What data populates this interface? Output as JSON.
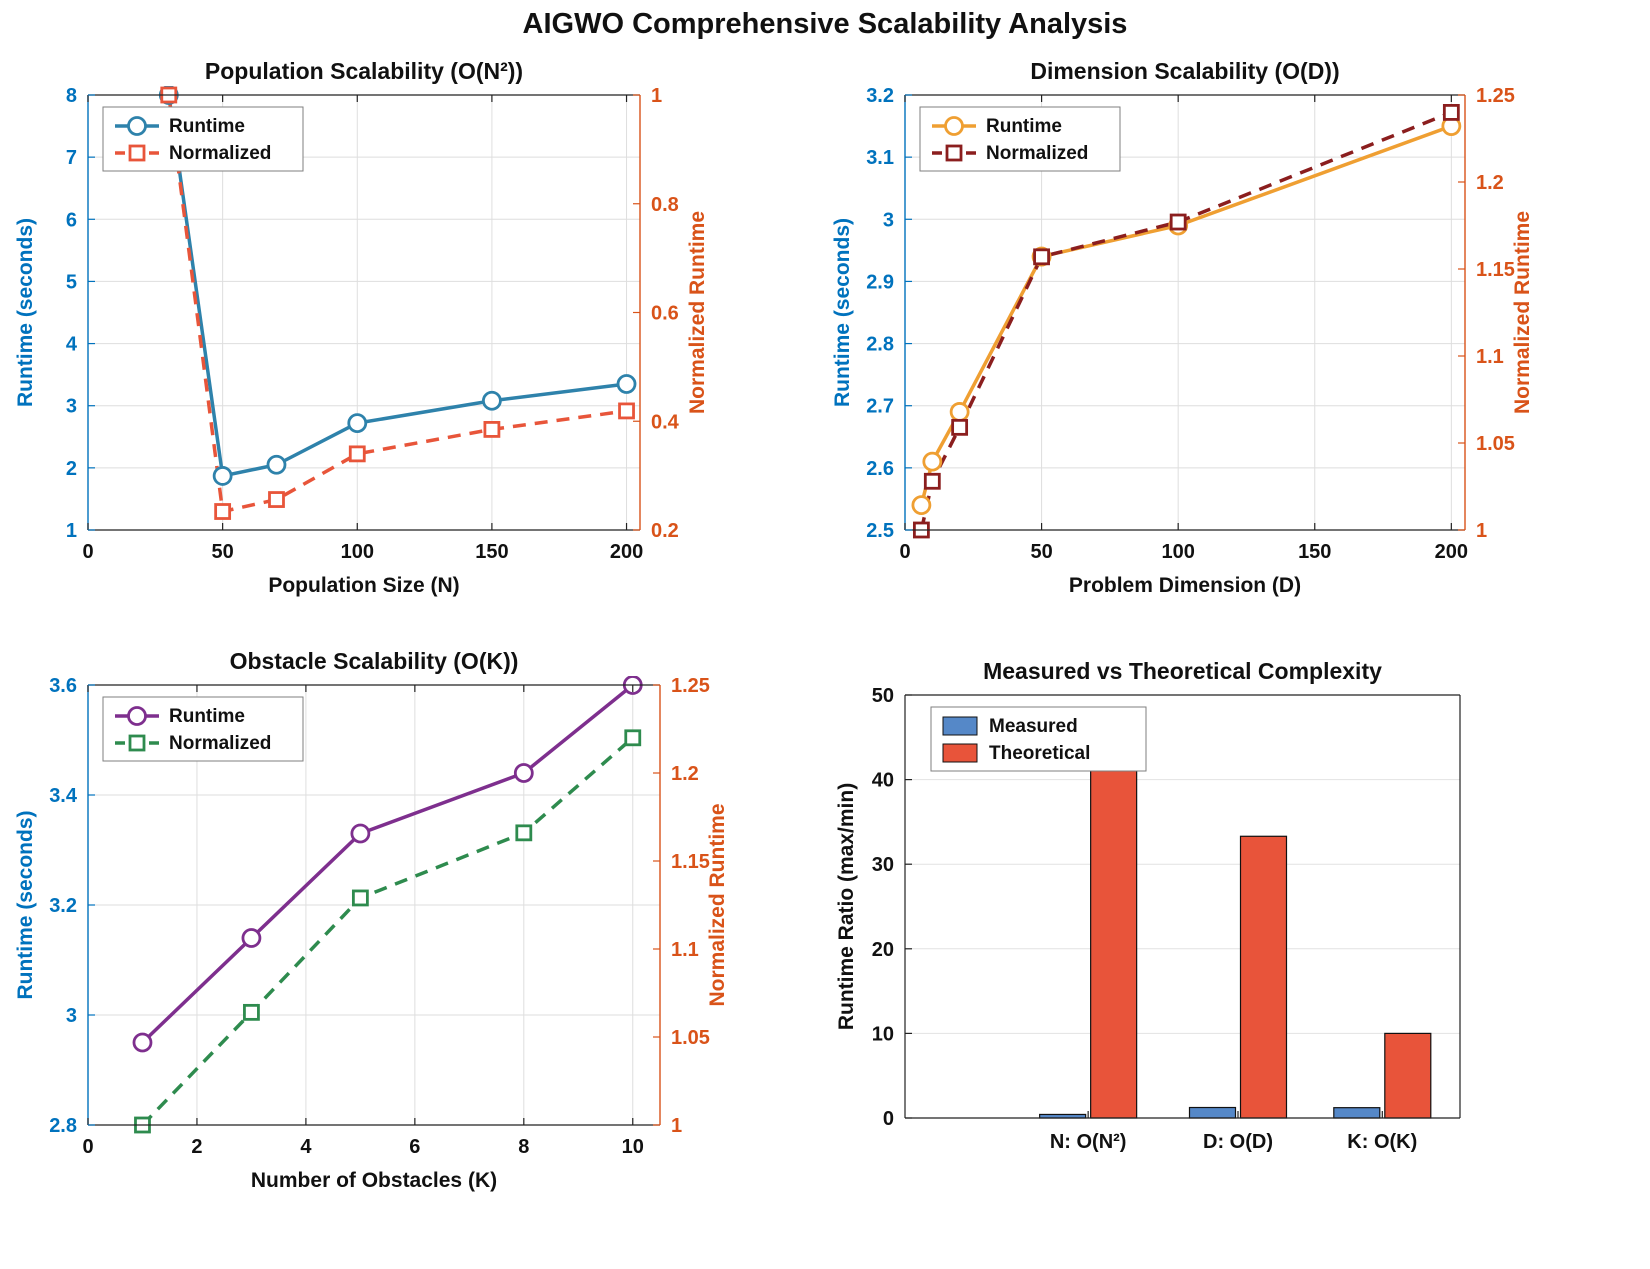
{
  "title": "AIGWO Comprehensive Scalability Analysis",
  "chart_data": [
    {
      "type": "line",
      "title": "Population Scalability (O(N²))",
      "xlabel": "Population Size (N)",
      "ylabel_left": "Runtime (seconds)",
      "ylabel_right": "Normalized Runtime",
      "xlim": [
        0,
        205
      ],
      "xticks": [
        0,
        50,
        100,
        150,
        200
      ],
      "ylim_left": [
        1,
        8
      ],
      "yticks_left": [
        1,
        2,
        3,
        4,
        5,
        6,
        7,
        8
      ],
      "ylim_right": [
        0.2,
        1
      ],
      "yticks_right": [
        0.2,
        0.4,
        0.6,
        0.8,
        1
      ],
      "axis_color_left": "#0072BD",
      "axis_color_right": "#D95319",
      "legend": [
        "Runtime",
        "Normalized"
      ],
      "series": [
        {
          "name": "Runtime",
          "axis": "left",
          "color": "#2E82AB",
          "dash": false,
          "marker": "circle",
          "x": [
            30,
            50,
            70,
            100,
            150,
            200
          ],
          "y": [
            8.0,
            1.87,
            2.05,
            2.72,
            3.08,
            3.35
          ]
        },
        {
          "name": "Normalized",
          "axis": "right",
          "color": "#E8553A",
          "dash": true,
          "marker": "square",
          "x": [
            30,
            50,
            70,
            100,
            150,
            200
          ],
          "y": [
            1.0,
            0.234,
            0.256,
            0.34,
            0.385,
            0.419
          ]
        }
      ]
    },
    {
      "type": "line",
      "title": "Dimension Scalability (O(D))",
      "xlabel": "Problem Dimension (D)",
      "ylabel_left": "Runtime (seconds)",
      "ylabel_right": "Normalized Runtime",
      "xlim": [
        0,
        205
      ],
      "xticks": [
        0,
        50,
        100,
        150,
        200
      ],
      "ylim_left": [
        2.5,
        3.2
      ],
      "yticks_left": [
        2.5,
        2.6,
        2.7,
        2.8,
        2.9,
        3,
        3.1,
        3.2
      ],
      "ylim_right": [
        1,
        1.25
      ],
      "yticks_right": [
        1,
        1.05,
        1.1,
        1.15,
        1.2,
        1.25
      ],
      "axis_color_left": "#0072BD",
      "axis_color_right": "#D95319",
      "legend": [
        "Runtime",
        "Normalized"
      ],
      "series": [
        {
          "name": "Runtime",
          "axis": "left",
          "color": "#EF9F32",
          "dash": false,
          "marker": "circle",
          "x": [
            6,
            10,
            20,
            50,
            100,
            200
          ],
          "y": [
            2.54,
            2.61,
            2.69,
            2.94,
            2.99,
            3.15
          ]
        },
        {
          "name": "Normalized",
          "axis": "right",
          "color": "#8B1E1E",
          "dash": true,
          "marker": "square",
          "x": [
            6,
            10,
            20,
            50,
            100,
            200
          ],
          "y": [
            1.0,
            1.028,
            1.059,
            1.157,
            1.177,
            1.24
          ]
        }
      ]
    },
    {
      "type": "line",
      "title": "Obstacle Scalability (O(K))",
      "xlabel": "Number of Obstacles (K)",
      "ylabel_left": "Runtime (seconds)",
      "ylabel_right": "Normalized Runtime",
      "xlim": [
        0,
        10.5
      ],
      "xticks": [
        0,
        2,
        4,
        6,
        8,
        10
      ],
      "ylim_left": [
        2.8,
        3.6
      ],
      "yticks_left": [
        2.8,
        3,
        3.2,
        3.4,
        3.6
      ],
      "ylim_right": [
        1,
        1.25
      ],
      "yticks_right": [
        1,
        1.05,
        1.1,
        1.15,
        1.2,
        1.25
      ],
      "axis_color_left": "#0072BD",
      "axis_color_right": "#D95319",
      "legend": [
        "Runtime",
        "Normalized"
      ],
      "series": [
        {
          "name": "Runtime",
          "axis": "left",
          "color": "#7E2F8E",
          "dash": false,
          "marker": "circle",
          "x": [
            1,
            3,
            5,
            8,
            10
          ],
          "y": [
            2.95,
            3.14,
            3.33,
            3.44,
            3.6
          ]
        },
        {
          "name": "Normalized",
          "axis": "right",
          "color": "#2E8B4E",
          "dash": true,
          "marker": "square",
          "x": [
            1,
            3,
            5,
            8,
            10
          ],
          "y": [
            1.0,
            1.064,
            1.129,
            1.166,
            1.22
          ]
        }
      ]
    },
    {
      "type": "bar",
      "title": "Measured vs Theoretical Complexity",
      "xlabel": "",
      "ylabel_left": "Runtime Ratio (max/min)",
      "categories": [
        "N: O(N²)",
        "D: O(D)",
        "K: O(K)"
      ],
      "ylim_left": [
        0,
        50
      ],
      "yticks_left": [
        0,
        10,
        20,
        30,
        40,
        50
      ],
      "axis_color_left": "#111111",
      "legend": [
        "Measured",
        "Theoretical"
      ],
      "series": [
        {
          "name": "Measured",
          "color": "#5588C8",
          "values": [
            0.42,
            1.24,
            1.22
          ]
        },
        {
          "name": "Theoretical",
          "color": "#E8543A",
          "values": [
            44.4,
            33.3,
            10.0
          ]
        }
      ]
    }
  ]
}
